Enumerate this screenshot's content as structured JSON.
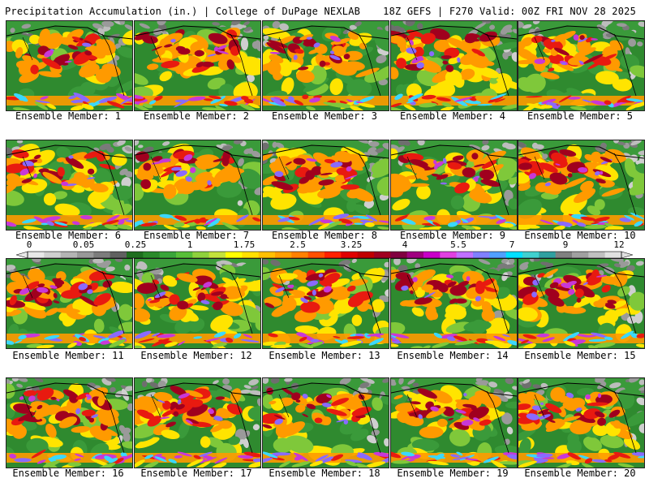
{
  "header": {
    "left_title": "Precipitation Accumulation (in.) | College of DuPage NEXLAB",
    "right_title": "18Z GEFS | F270 Valid: 00Z FRI NOV 28 2025"
  },
  "panels": [
    {
      "label": "Ensemble Member: 1"
    },
    {
      "label": "Ensemble Member: 2"
    },
    {
      "label": "Ensemble Member: 3"
    },
    {
      "label": "Ensemble Member: 4"
    },
    {
      "label": "Ensemble Member: 5"
    },
    {
      "label": "Ensemble Member: 6"
    },
    {
      "label": "Ensemble Member: 7"
    },
    {
      "label": "Ensemble Member: 8"
    },
    {
      "label": "Ensemble Member: 9"
    },
    {
      "label": "Ensemble Member: 10"
    },
    {
      "label": "Ensemble Member: 11"
    },
    {
      "label": "Ensemble Member: 12"
    },
    {
      "label": "Ensemble Member: 13"
    },
    {
      "label": "Ensemble Member: 14"
    },
    {
      "label": "Ensemble Member: 15"
    },
    {
      "label": "Ensemble Member: 16"
    },
    {
      "label": "Ensemble Member: 17"
    },
    {
      "label": "Ensemble Member: 18"
    },
    {
      "label": "Ensemble Member: 19"
    },
    {
      "label": "Ensemble Member: 20"
    }
  ],
  "colorbar": {
    "ticks": [
      "0",
      "0.05",
      "0.25",
      "1",
      "1.75",
      "2.5",
      "3.25",
      "4",
      "5.5",
      "7",
      "9",
      "12"
    ],
    "colors": [
      "#e8e8e8",
      "#d0d0d0",
      "#b4b4b4",
      "#989898",
      "#7c7c7c",
      "#606060",
      "#1e6e1e",
      "#2a8a2a",
      "#3aa53a",
      "#58bf38",
      "#8fd23c",
      "#c4e23c",
      "#ffff00",
      "#ffe000",
      "#ffc000",
      "#ffa000",
      "#ff8000",
      "#ff5000",
      "#ff2000",
      "#e00000",
      "#c00000",
      "#a00020",
      "#800040",
      "#a00080",
      "#c800c8",
      "#e040e0",
      "#c070ff",
      "#8080ff",
      "#50a0ff",
      "#00e0ff",
      "#40d0d0",
      "#30a0a0",
      "#808080",
      "#a0a0a0",
      "#c0c0c0",
      "#e0e0e0"
    ],
    "palette": {
      "ocean_green": "#2f8a2f",
      "land_green": "#3a9a3a",
      "light_green": "#7fc83a",
      "yellow": "#ffe400",
      "orange": "#ff9a00",
      "red": "#e81a10",
      "dark_red": "#a0001e",
      "magenta": "#c838d8",
      "violet": "#8a6aff",
      "cyan": "#3ad8ff",
      "gray": "#9a9a9a",
      "coast": "#000000"
    }
  }
}
